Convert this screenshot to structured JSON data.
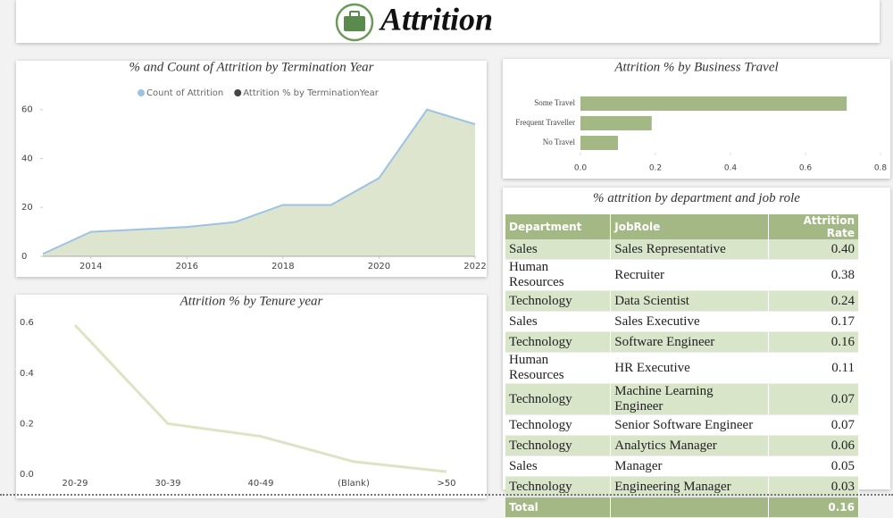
{
  "header": {
    "title": "Attrition"
  },
  "chart_data": [
    {
      "type": "area",
      "title": "% and Count of Attrition by Termination Year",
      "x": [
        2013,
        2014,
        2015,
        2016,
        2017,
        2018,
        2019,
        2020,
        2021,
        2022
      ],
      "series": [
        {
          "name": "Count of Attrition",
          "color": "#9dc3e2",
          "fill": "#dde5cf",
          "values": [
            1,
            10,
            11,
            12,
            14,
            21,
            21,
            32,
            60,
            54
          ]
        },
        {
          "name": "Attrition % by TerminationYear",
          "color": "#444444",
          "values": [
            null,
            null,
            null,
            null,
            null,
            null,
            null,
            null,
            null,
            null
          ]
        }
      ],
      "xlim": [
        2013,
        2022
      ],
      "xticks": [
        2014,
        2016,
        2018,
        2020,
        2022
      ],
      "ylim": [
        0,
        65
      ],
      "yticks": [
        0,
        20,
        40,
        60
      ]
    },
    {
      "type": "bar",
      "orientation": "horizontal",
      "title": "Attrition % by Business Travel",
      "categories": [
        "Some Travel",
        "Frequent Traveller",
        "No Travel"
      ],
      "values": [
        0.71,
        0.19,
        0.1
      ],
      "color": "#a4b886",
      "xlim": [
        0,
        0.8
      ],
      "xticks": [
        {
          "value": 0,
          "label": "0.0"
        },
        0.2,
        0.4,
        0.6,
        0.8
      ]
    },
    {
      "type": "line",
      "title": "Attrition % by Tenure year",
      "categories": [
        "20-29",
        "30-39",
        "40-49",
        "(Blank)",
        ">50"
      ],
      "values": [
        0.59,
        0.2,
        0.15,
        0.05,
        0.01
      ],
      "color": "#dfe3c6",
      "ylim": [
        0,
        0.65
      ],
      "yticks": [
        {
          "value": 0,
          "label": "0.0"
        },
        0.2,
        0.4,
        0.6
      ]
    }
  ],
  "table": {
    "title": "% attrition by department and job role",
    "columns": [
      "Department",
      "JobRole",
      "Attrition Rate"
    ],
    "rows": [
      [
        "Sales",
        "Sales Representative",
        "0.40"
      ],
      [
        "Human Resources",
        "Recruiter",
        "0.38"
      ],
      [
        "Technology",
        "Data Scientist",
        "0.24"
      ],
      [
        "Sales",
        "Sales Executive",
        "0.17"
      ],
      [
        "Technology",
        "Software Engineer",
        "0.16"
      ],
      [
        "Human Resources",
        "HR Executive",
        "0.11"
      ],
      [
        "Technology",
        "Machine Learning Engineer",
        "0.07"
      ],
      [
        "Technology",
        "Senior Software Engineer",
        "0.07"
      ],
      [
        "Technology",
        "Analytics Manager",
        "0.06"
      ],
      [
        "Sales",
        "Manager",
        "0.05"
      ],
      [
        "Technology",
        "Engineering Manager",
        "0.03"
      ]
    ],
    "total": [
      "Total",
      "0.16"
    ]
  }
}
